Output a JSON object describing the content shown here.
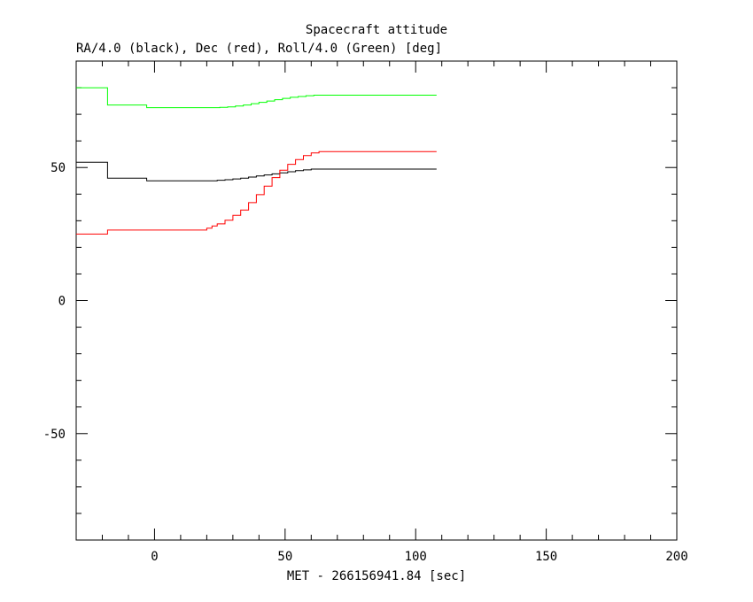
{
  "chart_data": {
    "type": "line",
    "title": "Spacecraft attitude",
    "subtitle": "RA/4.0 (black), Dec (red), Roll/4.0 (Green) [deg]",
    "xlabel": "MET - 266156941.84 [sec]",
    "ylabel": "",
    "xlim": [
      -30,
      200
    ],
    "ylim": [
      -90,
      90
    ],
    "x_ticks": [
      0,
      50,
      100,
      150,
      200
    ],
    "y_ticks": [
      -50,
      0,
      50
    ],
    "x_minor_step": 10,
    "y_minor_step": 10,
    "grid": false,
    "step": true,
    "series": [
      {
        "color": "#000000",
        "x": [
          -30,
          -18,
          -3,
          10,
          20,
          24,
          27,
          30,
          33,
          36,
          39,
          42,
          45,
          48,
          51,
          54,
          57,
          60,
          108
        ],
        "y": [
          52,
          46,
          45,
          45,
          45,
          45.2,
          45.4,
          45.7,
          46,
          46.4,
          46.8,
          47.2,
          47.6,
          48,
          48.4,
          48.8,
          49.1,
          49.4,
          49.4
        ]
      },
      {
        "color": "#ff0000",
        "x": [
          -30,
          -18,
          -3,
          10,
          18,
          20,
          22,
          24,
          27,
          30,
          33,
          36,
          39,
          42,
          45,
          48,
          51,
          54,
          57,
          60,
          63,
          108
        ],
        "y": [
          25,
          26.5,
          26.5,
          26.5,
          26.5,
          27.2,
          28,
          28.8,
          30.2,
          32,
          34,
          36.8,
          39.8,
          43,
          46.2,
          49,
          51.2,
          53,
          54.5,
          55.5,
          56,
          56
        ]
      },
      {
        "color": "#00ff00",
        "x": [
          -30,
          -18,
          -3,
          10,
          20,
          25,
          28,
          31,
          34,
          37,
          40,
          43,
          46,
          49,
          52,
          55,
          58,
          61,
          108
        ],
        "y": [
          80,
          73.5,
          72.5,
          72.5,
          72.5,
          72.6,
          72.8,
          73.1,
          73.5,
          74,
          74.5,
          75,
          75.5,
          76,
          76.4,
          76.7,
          77,
          77.2,
          77.2
        ]
      }
    ]
  }
}
